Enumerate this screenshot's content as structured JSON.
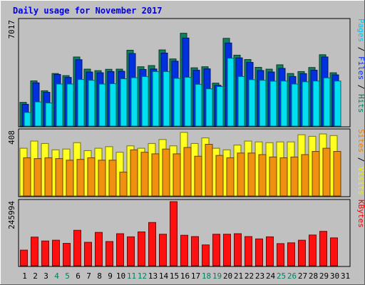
{
  "chart_data": {
    "type": "bar",
    "title": "Daily usage for November 2017",
    "categories": [
      "1",
      "2",
      "3",
      "4",
      "5",
      "6",
      "7",
      "8",
      "9",
      "10",
      "11",
      "12",
      "13",
      "14",
      "15",
      "16",
      "17",
      "18",
      "19",
      "20",
      "21",
      "22",
      "23",
      "24",
      "25",
      "26",
      "27",
      "28",
      "29",
      "30",
      "31"
    ],
    "weekend_days": [
      4,
      5,
      11,
      12,
      18,
      19,
      25,
      26
    ],
    "panels": [
      {
        "name": "hits-files-pages",
        "ymax_label": "7017",
        "ymax": 7017,
        "right_label": [
          {
            "text": "Pages",
            "color": "#00c8f0"
          },
          {
            "text": " / ",
            "color": "#000000"
          },
          {
            "text": "Files",
            "color": "#0030ff"
          },
          {
            "text": " / ",
            "color": "#000000"
          },
          {
            "text": "Hits",
            "color": "#008060"
          }
        ],
        "series": [
          {
            "name": "Hits",
            "color": "#108060",
            "values": [
              1580,
              3010,
              2350,
              3500,
              3360,
              4600,
              3790,
              3690,
              3780,
              3790,
              5050,
              3950,
              4030,
              5070,
              4470,
              6180,
              3880,
              3950,
              2860,
              5840,
              4720,
              4430,
              3910,
              3790,
              4080,
              3500,
              3630,
              3900,
              4750,
              3550,
              null
            ]
          },
          {
            "name": "Files",
            "color": "#0030e0",
            "values": [
              1450,
              2880,
              2250,
              3440,
              3240,
              4420,
              3600,
              3550,
              3630,
              3650,
              4830,
              3770,
              3800,
              4860,
              4320,
              5860,
              3720,
              3810,
              2720,
              5530,
              4540,
              4240,
              3700,
              3600,
              3840,
              3300,
              3490,
              3720,
              4600,
              3410,
              null
            ]
          },
          {
            "name": "Pages",
            "color": "#00e0f0",
            "values": [
              910,
              1610,
              1540,
              2800,
              2800,
              3100,
              3050,
              2800,
              2820,
              3150,
              3220,
              3300,
              3630,
              3630,
              3180,
              3250,
              2780,
              2480,
              2630,
              4520,
              3300,
              3090,
              3050,
              2990,
              3000,
              2800,
              2950,
              3000,
              3210,
              3000,
              null
            ]
          }
        ]
      },
      {
        "name": "visits-sites",
        "ymax_label": "408",
        "ymax": 408,
        "right_label": [
          {
            "text": "Sites",
            "color": "#f08000"
          },
          {
            "text": " / ",
            "color": "#000000"
          },
          {
            "text": "Visits",
            "color": "#f0f000"
          }
        ],
        "series": [
          {
            "name": "Visits",
            "color": "#ffff20",
            "values": [
              300,
              345,
              330,
              290,
              295,
              335,
              285,
              300,
              310,
              275,
              315,
              300,
              330,
              355,
              315,
              400,
              330,
              365,
              300,
              290,
              320,
              345,
              340,
              335,
              340,
              340,
              385,
              375,
              390,
              380,
              null
            ]
          },
          {
            "name": "Sites",
            "color": "#f09010",
            "values": [
              240,
              235,
              240,
              235,
              225,
              230,
              240,
              225,
              225,
              150,
              290,
              275,
              265,
              295,
              265,
              305,
              250,
              325,
              255,
              240,
              270,
              270,
              260,
              245,
              240,
              245,
              260,
              280,
              300,
              280,
              null
            ]
          }
        ]
      },
      {
        "name": "kbytes",
        "ymax_label": "245994",
        "ymax": 245994,
        "right_label": [
          {
            "text": "KBytes",
            "color": "#ff0000"
          }
        ],
        "series": [
          {
            "name": "KBytes",
            "color": "#ff1010",
            "values": [
              60000,
              110000,
              95000,
              98000,
              86000,
              136000,
              90000,
              128000,
              93000,
              123000,
              111000,
              130000,
              166000,
              121000,
              245994,
              117000,
              112000,
              80000,
              121000,
              121000,
              123000,
              112000,
              103000,
              111000,
              85000,
              88000,
              98000,
              118000,
              132000,
              107000,
              null
            ]
          }
        ]
      }
    ]
  }
}
